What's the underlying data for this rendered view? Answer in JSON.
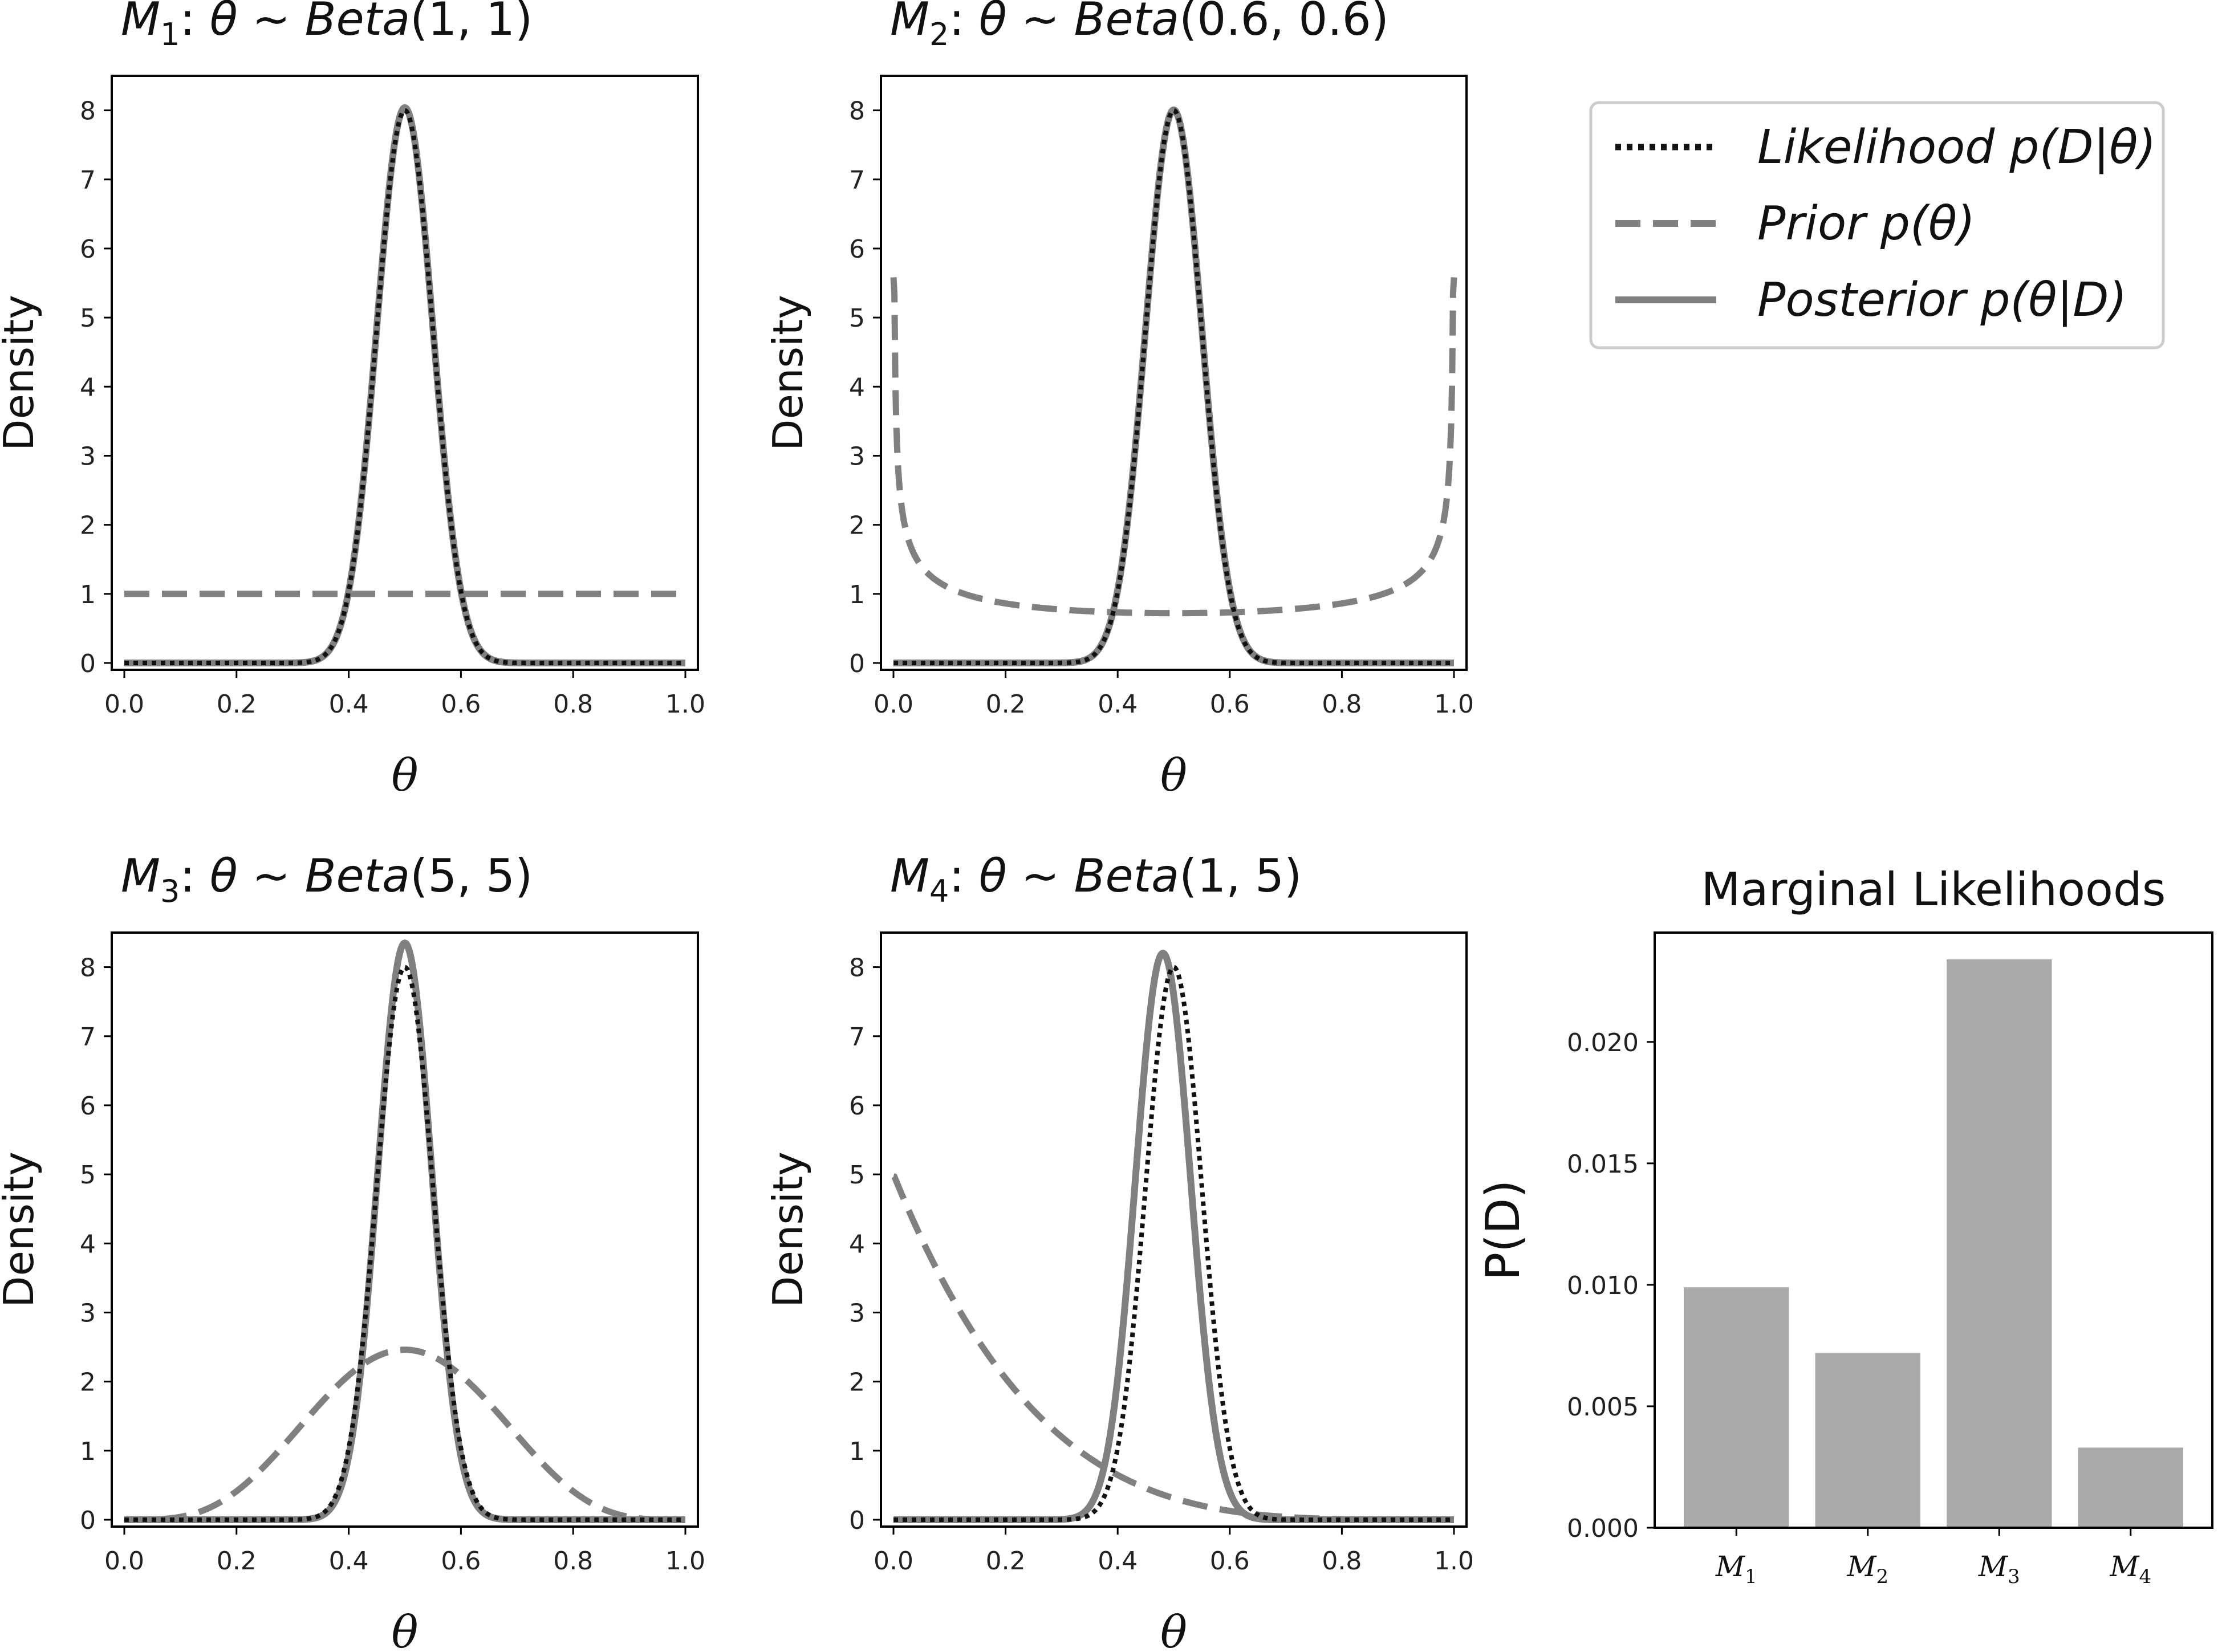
{
  "chart_data": [
    {
      "type": "line",
      "title": {
        "model": "M",
        "sub": "1",
        "sep": ":",
        "rest": "θ ∼ ",
        "dist": "Beta",
        "params": "(1, 1)"
      },
      "prior": {
        "alpha": 1,
        "beta": 1
      },
      "likelihood_peak": 8,
      "xlabel": "θ",
      "ylabel": "Density",
      "xlim": [
        0,
        1
      ],
      "ylim": [
        0,
        8.5
      ],
      "xticks": [
        "0.0",
        "0.2",
        "0.4",
        "0.6",
        "0.8",
        "1.0"
      ],
      "yticks": [
        "0",
        "1",
        "2",
        "3",
        "4",
        "5",
        "6",
        "7",
        "8"
      ]
    },
    {
      "type": "line",
      "title": {
        "model": "M",
        "sub": "2",
        "sep": ":",
        "rest": "θ ∼ ",
        "dist": "Beta",
        "params": "(0.6, 0.6)"
      },
      "prior": {
        "alpha": 0.6,
        "beta": 0.6
      },
      "likelihood_peak": 8,
      "xlabel": "θ",
      "ylabel": "Density",
      "xlim": [
        0,
        1
      ],
      "ylim": [
        0,
        8.5
      ],
      "xticks": [
        "0.0",
        "0.2",
        "0.4",
        "0.6",
        "0.8",
        "1.0"
      ],
      "yticks": [
        "0",
        "1",
        "2",
        "3",
        "4",
        "5",
        "6",
        "7",
        "8"
      ]
    },
    {
      "type": "line",
      "title": {
        "model": "M",
        "sub": "3",
        "sep": ":",
        "rest": "θ ∼ ",
        "dist": "Beta",
        "params": "(5, 5)"
      },
      "prior": {
        "alpha": 5,
        "beta": 5
      },
      "likelihood_peak": 8,
      "xlabel": "θ",
      "ylabel": "Density",
      "xlim": [
        0,
        1
      ],
      "ylim": [
        0,
        8.5
      ],
      "xticks": [
        "0.0",
        "0.2",
        "0.4",
        "0.6",
        "0.8",
        "1.0"
      ],
      "yticks": [
        "0",
        "1",
        "2",
        "3",
        "4",
        "5",
        "6",
        "7",
        "8"
      ]
    },
    {
      "type": "line",
      "title": {
        "model": "M",
        "sub": "4",
        "sep": ":",
        "rest": "θ ∼ ",
        "dist": "Beta",
        "params": "(1, 5)"
      },
      "prior": {
        "alpha": 1,
        "beta": 5
      },
      "likelihood_peak": 8,
      "xlabel": "θ",
      "ylabel": "Density",
      "xlim": [
        0,
        1
      ],
      "ylim": [
        0,
        8.5
      ],
      "xticks": [
        "0.0",
        "0.2",
        "0.4",
        "0.6",
        "0.8",
        "1.0"
      ],
      "yticks": [
        "0",
        "1",
        "2",
        "3",
        "4",
        "5",
        "6",
        "7",
        "8"
      ]
    },
    {
      "type": "bar",
      "title": "Marginal Likelihoods",
      "ylabel": "P(D)",
      "categories": [
        {
          "model": "M",
          "sub": "1"
        },
        {
          "model": "M",
          "sub": "2"
        },
        {
          "model": "M",
          "sub": "3"
        },
        {
          "model": "M",
          "sub": "4"
        }
      ],
      "values": [
        0.0099,
        0.0072,
        0.0234,
        0.0033
      ],
      "ylim": [
        0,
        0.0245
      ],
      "yticks": [
        "0.000",
        "0.005",
        "0.010",
        "0.015",
        "0.020"
      ]
    }
  ],
  "legend": {
    "entries": [
      {
        "label": "Likelihood p(D|θ)",
        "style": "dotted"
      },
      {
        "label": "Prior p(θ)",
        "style": "dashed"
      },
      {
        "label": "Posterior p(θ|D)",
        "style": "solid"
      }
    ]
  },
  "colors": {
    "gray": "#808080",
    "dark": "#111111",
    "bar": "#aaaaaa",
    "spine": "#000000"
  }
}
